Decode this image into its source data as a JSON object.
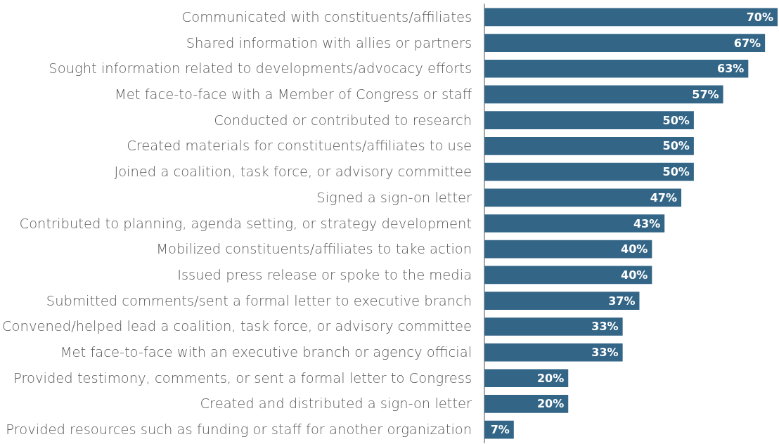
{
  "chart_data": {
    "type": "bar",
    "orientation": "horizontal",
    "categories": [
      "Communicated with constituents/affiliates",
      "Shared information with allies or partners",
      "Sought information related to developments/advocacy efforts",
      "Met face-to-face with a Member of Congress or staff",
      "Conducted or contributed to research",
      "Created materials for constituents/affiliates to use",
      "Joined a coalition, task force, or advisory committee",
      "Signed a sign-on letter",
      "Contributed to planning, agenda setting, or strategy development",
      "Mobilized constituents/affiliates to take action",
      "Issued press release or spoke to the media",
      "Submitted comments/sent a formal letter to executive branch",
      "Convened/helped lead a coalition, task force, or advisory committee",
      "Met face-to-face with an executive branch or agency official",
      "Provided testimony, comments, or sent a formal letter to Congress",
      "Created and distributed a sign-on letter",
      "Provided resources such as funding or staff for another organization"
    ],
    "values": [
      70,
      67,
      63,
      57,
      50,
      50,
      50,
      47,
      43,
      40,
      40,
      37,
      33,
      33,
      20,
      20,
      7
    ],
    "value_labels": [
      "70%",
      "67%",
      "63%",
      "57%",
      "50%",
      "50%",
      "50%",
      "47%",
      "43%",
      "40%",
      "40%",
      "37%",
      "33%",
      "33%",
      "20%",
      "20%",
      "7%"
    ],
    "color": "#336587"
  }
}
